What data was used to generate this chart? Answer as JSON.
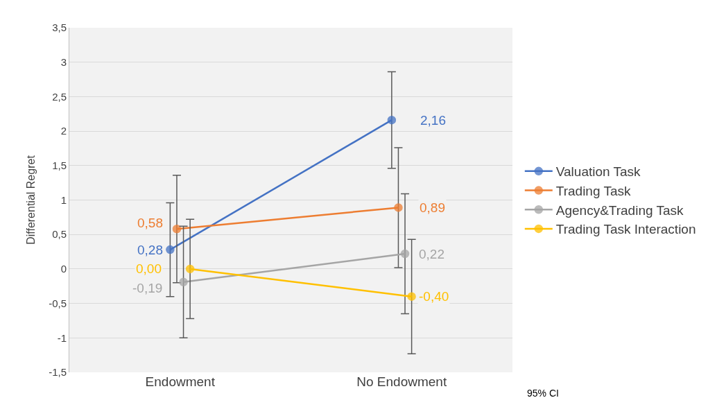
{
  "chart_data": {
    "type": "line",
    "ylabel": "Differential Regret",
    "categories": [
      "Endowment",
      "No Endowment"
    ],
    "ylim": [
      -1.5,
      3.5
    ],
    "yticks": [
      {
        "value": -1.5,
        "label": "-1,5"
      },
      {
        "value": -1,
        "label": "-1"
      },
      {
        "value": -0.5,
        "label": "-0,5"
      },
      {
        "value": 0,
        "label": "0"
      },
      {
        "value": 0.5,
        "label": "0,5"
      },
      {
        "value": 1,
        "label": "1"
      },
      {
        "value": 1.5,
        "label": "1,5"
      },
      {
        "value": 2,
        "label": "2"
      },
      {
        "value": 2.5,
        "label": "2,5"
      },
      {
        "value": 3,
        "label": "3"
      },
      {
        "value": 3.5,
        "label": "3,5"
      }
    ],
    "grid": "y",
    "legend": "right",
    "marker": "circle",
    "line_style": "solid",
    "series": [
      {
        "name": "Valuation Task",
        "color": "#4472c4",
        "values": [
          0.28,
          2.16
        ],
        "errors": [
          0.68,
          0.7
        ],
        "value_labels": [
          "0,28",
          "2,16"
        ]
      },
      {
        "name": "Trading Task",
        "color": "#ed7d31",
        "values": [
          0.58,
          0.89
        ],
        "errors": [
          0.78,
          0.87
        ],
        "value_labels": [
          "0,58",
          "0,89"
        ]
      },
      {
        "name": "Agency&Trading Task",
        "color": "#a5a5a5",
        "values": [
          -0.19,
          0.22
        ],
        "errors": [
          0.81,
          0.87
        ],
        "value_labels": [
          "-0,19",
          "0,22"
        ]
      },
      {
        "name": "Trading Task Interaction",
        "color": "#ffc000",
        "values": [
          0.0,
          -0.4
        ],
        "errors": [
          0.72,
          0.83
        ],
        "value_labels": [
          "0,00",
          "-0,40"
        ]
      }
    ],
    "annotations": [
      "95% CI"
    ]
  }
}
